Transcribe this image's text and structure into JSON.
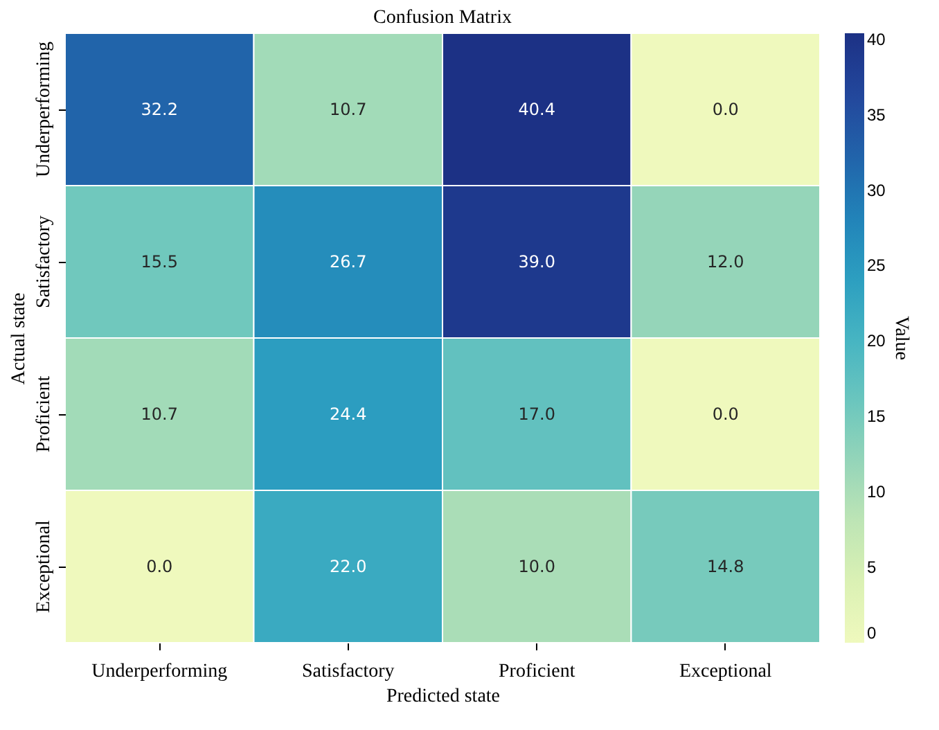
{
  "chart_data": {
    "type": "heatmap",
    "title": "Confusion Matrix",
    "xlabel": "Predicted state",
    "ylabel": "Actual state",
    "clabel": "Value",
    "categories": [
      "Underperforming",
      "Satisfactory",
      "Proficient",
      "Exceptional"
    ],
    "y_categories": [
      "Underperforming",
      "Satisfactory",
      "Proficient",
      "Exceptional"
    ],
    "cells": [
      [
        32.2,
        10.7,
        40.4,
        0.0
      ],
      [
        15.5,
        26.7,
        39.0,
        12.0
      ],
      [
        10.7,
        24.4,
        17.0,
        0.0
      ],
      [
        0.0,
        22.0,
        10.0,
        14.8
      ]
    ],
    "cell_labels": [
      [
        "32.2",
        "10.7",
        "40.4",
        "0.0"
      ],
      [
        "15.5",
        "26.7",
        "39.0",
        "12.0"
      ],
      [
        "10.7",
        "24.4",
        "17.0",
        "0.0"
      ],
      [
        "0.0",
        "22.0",
        "10.0",
        "14.8"
      ]
    ],
    "clim": [
      0,
      40.4
    ],
    "cticks": [
      0,
      5,
      10,
      15,
      20,
      25,
      30,
      35,
      40
    ],
    "data_labels": true
  }
}
